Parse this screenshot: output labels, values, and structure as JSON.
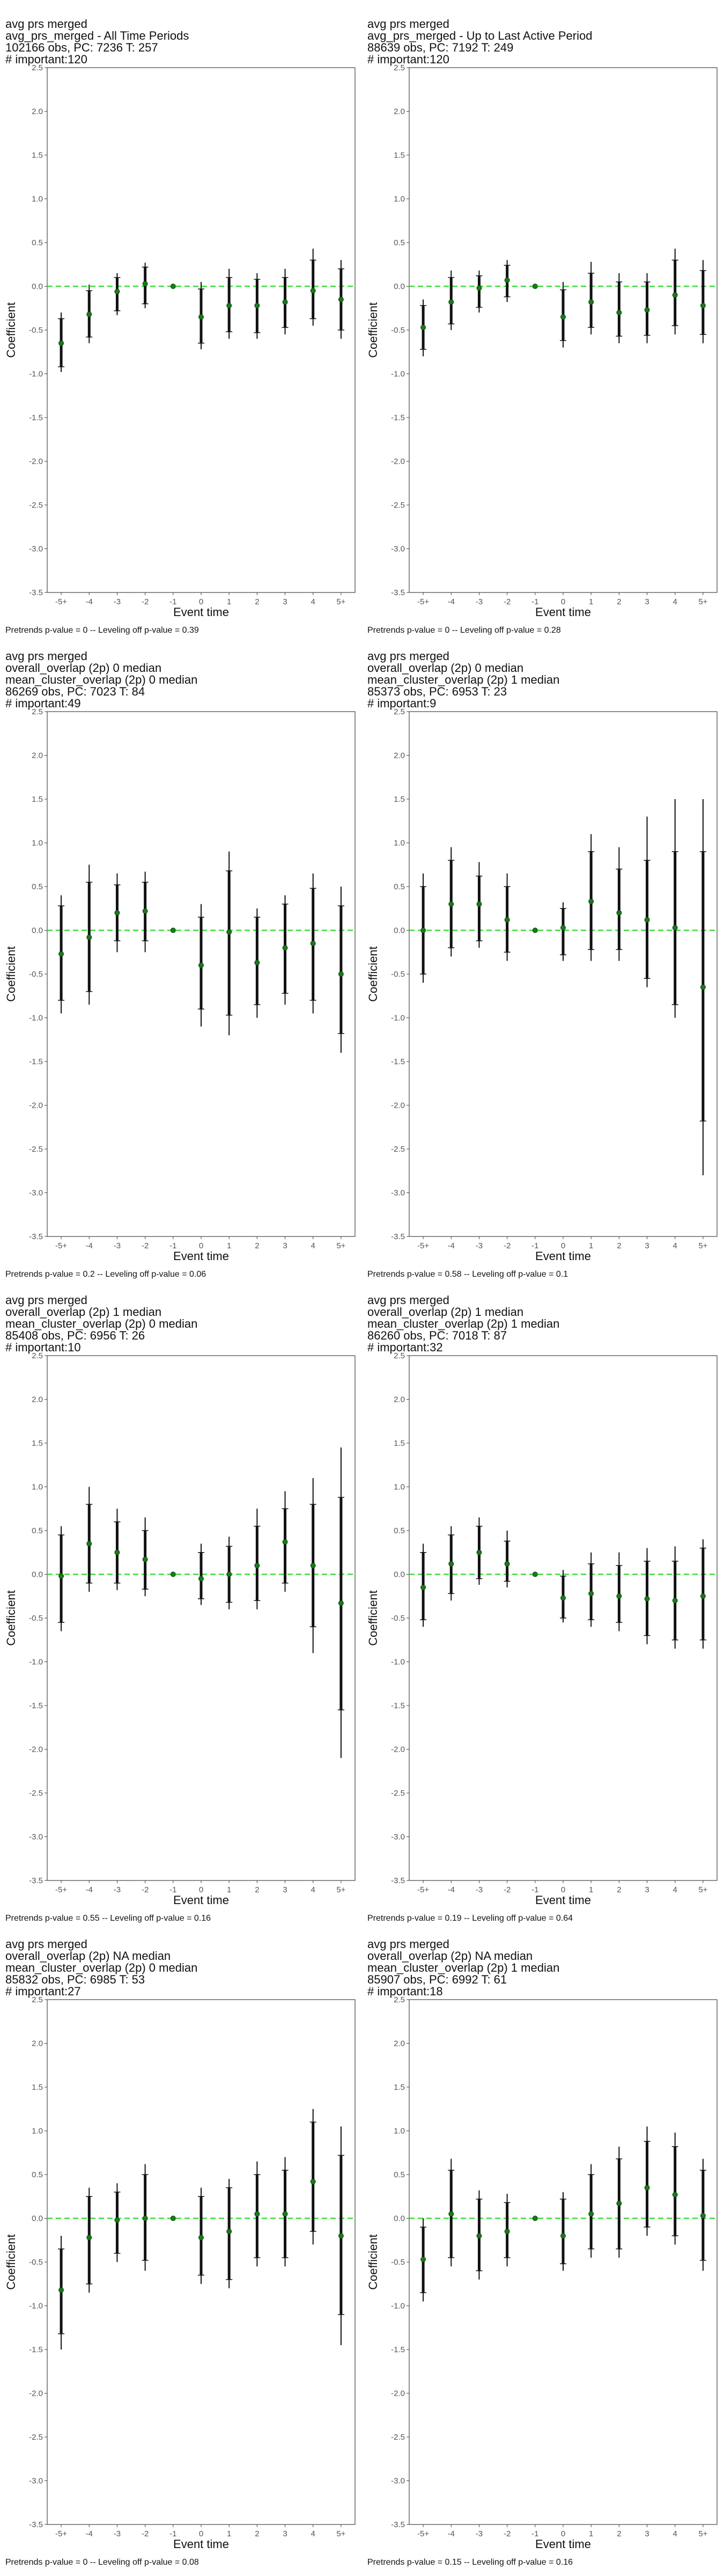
{
  "panels": [
    {
      "title_lines": [
        "avg prs merged",
        "avg_prs_merged - All Time Periods",
        "102166 obs, PC: 7236 T: 257",
        "# important:120"
      ],
      "footer": "Pretrends p-value = 0 -- Leveling off p-value = 0.39",
      "chart_data": {
        "type": "scatter",
        "xlabel": "Event time",
        "ylabel": "Coefficient",
        "categories": [
          "-5+",
          "-4",
          "-3",
          "-2",
          "-1",
          "0",
          "1",
          "2",
          "3",
          "4",
          "5+"
        ],
        "ylim": [
          -3.5,
          2.5
        ],
        "yticks": [
          -3.5,
          -3.0,
          -2.5,
          -2.0,
          -1.5,
          -1.0,
          -0.5,
          0.0,
          0.5,
          1.0,
          1.5,
          2.0,
          2.5
        ],
        "reference_line": 0,
        "estimate": [
          -0.65,
          -0.32,
          -0.06,
          0.03,
          0.0,
          -0.35,
          -0.22,
          -0.22,
          -0.18,
          -0.05,
          -0.15
        ],
        "ci95_low": [
          -0.98,
          -0.65,
          -0.33,
          -0.25,
          0.0,
          -0.72,
          -0.6,
          -0.6,
          -0.55,
          -0.45,
          -0.6
        ],
        "ci95_high": [
          -0.3,
          0.02,
          0.15,
          0.27,
          0.0,
          0.05,
          0.2,
          0.15,
          0.2,
          0.43,
          0.3
        ],
        "ci90_low": [
          -0.92,
          -0.58,
          -0.28,
          -0.2,
          0.0,
          -0.65,
          -0.52,
          -0.53,
          -0.47,
          -0.37,
          -0.5
        ],
        "ci90_high": [
          -0.37,
          -0.05,
          0.1,
          0.22,
          0.0,
          -0.03,
          0.1,
          0.08,
          0.1,
          0.3,
          0.2
        ],
        "grid": false
      }
    },
    {
      "title_lines": [
        "avg prs merged",
        "avg_prs_merged - Up to Last Active Period",
        "88639 obs, PC: 7192 T: 249",
        "# important:120"
      ],
      "footer": "Pretrends p-value = 0 -- Leveling off p-value = 0.28",
      "chart_data": {
        "type": "scatter",
        "xlabel": "Event time",
        "ylabel": "Coefficient",
        "categories": [
          "-5+",
          "-4",
          "-3",
          "-2",
          "-1",
          "0",
          "1",
          "2",
          "3",
          "4",
          "5+"
        ],
        "ylim": [
          -3.5,
          2.5
        ],
        "yticks": [
          -3.5,
          -3.0,
          -2.5,
          -2.0,
          -1.5,
          -1.0,
          -0.5,
          0.0,
          0.5,
          1.0,
          1.5,
          2.0,
          2.5
        ],
        "reference_line": 0,
        "estimate": [
          -0.47,
          -0.18,
          -0.02,
          0.07,
          0.0,
          -0.35,
          -0.18,
          -0.3,
          -0.27,
          -0.1,
          -0.22
        ],
        "ci95_low": [
          -0.8,
          -0.5,
          -0.3,
          -0.18,
          0.0,
          -0.7,
          -0.55,
          -0.65,
          -0.65,
          -0.55,
          -0.65
        ],
        "ci95_high": [
          -0.15,
          0.18,
          0.18,
          0.3,
          0.0,
          0.05,
          0.28,
          0.15,
          0.15,
          0.43,
          0.3
        ],
        "ci90_low": [
          -0.72,
          -0.43,
          -0.24,
          -0.12,
          0.0,
          -0.62,
          -0.47,
          -0.57,
          -0.56,
          -0.45,
          -0.55
        ],
        "ci90_high": [
          -0.22,
          0.1,
          0.12,
          0.24,
          0.0,
          -0.04,
          0.15,
          0.05,
          0.05,
          0.3,
          0.18
        ],
        "grid": false
      }
    },
    {
      "title_lines": [
        "avg prs merged",
        "overall_overlap (2p) 0 median",
        "mean_cluster_overlap (2p) 0 median",
        "86269 obs, PC: 7023 T: 84",
        "# important:49"
      ],
      "footer": "Pretrends p-value = 0.2 -- Leveling off p-value = 0.06",
      "chart_data": {
        "type": "scatter",
        "xlabel": "Event time",
        "ylabel": "Coefficient",
        "categories": [
          "-5+",
          "-4",
          "-3",
          "-2",
          "-1",
          "0",
          "1",
          "2",
          "3",
          "4",
          "5+"
        ],
        "ylim": [
          -3.5,
          2.5
        ],
        "yticks": [
          -3.5,
          -3.0,
          -2.5,
          -2.0,
          -1.5,
          -1.0,
          -0.5,
          0.0,
          0.5,
          1.0,
          1.5,
          2.0,
          2.5
        ],
        "reference_line": 0,
        "estimate": [
          -0.27,
          -0.08,
          0.2,
          0.22,
          0.0,
          -0.4,
          -0.02,
          -0.37,
          -0.2,
          -0.15,
          -0.5
        ],
        "ci95_low": [
          -0.95,
          -0.85,
          -0.25,
          -0.25,
          0.0,
          -1.1,
          -1.2,
          -1.0,
          -0.85,
          -0.95,
          -1.4
        ],
        "ci95_high": [
          0.4,
          0.75,
          0.65,
          0.67,
          0.0,
          0.3,
          0.9,
          0.25,
          0.4,
          0.65,
          0.5
        ],
        "ci90_low": [
          -0.8,
          -0.7,
          -0.12,
          -0.12,
          0.0,
          -0.9,
          -0.97,
          -0.85,
          -0.72,
          -0.8,
          -1.18
        ],
        "ci90_high": [
          0.28,
          0.55,
          0.52,
          0.55,
          0.0,
          0.15,
          0.68,
          0.15,
          0.3,
          0.48,
          0.28
        ],
        "grid": false
      }
    },
    {
      "title_lines": [
        "avg prs merged",
        "overall_overlap (2p) 0 median",
        "mean_cluster_overlap (2p) 1 median",
        "85373 obs, PC: 6953 T: 23",
        "# important:9"
      ],
      "footer": "Pretrends p-value = 0.58 -- Leveling off p-value = 0.1",
      "chart_data": {
        "type": "scatter",
        "xlabel": "Event time",
        "ylabel": "Coefficient",
        "categories": [
          "-5+",
          "-4",
          "-3",
          "-2",
          "-1",
          "0",
          "1",
          "2",
          "3",
          "4",
          "5+"
        ],
        "ylim": [
          -3.5,
          2.5
        ],
        "yticks": [
          -3.5,
          -3.0,
          -2.5,
          -2.0,
          -1.5,
          -1.0,
          -0.5,
          0.0,
          0.5,
          1.0,
          1.5,
          2.0,
          2.5
        ],
        "reference_line": 0,
        "estimate": [
          0.0,
          0.3,
          0.3,
          0.12,
          0.0,
          0.03,
          0.33,
          0.2,
          0.12,
          0.03,
          -0.65
        ],
        "ci95_low": [
          -0.6,
          -0.3,
          -0.2,
          -0.35,
          0.0,
          -0.35,
          -0.35,
          -0.35,
          -0.65,
          -1.0,
          -2.8
        ],
        "ci95_high": [
          0.65,
          0.95,
          0.78,
          0.65,
          0.0,
          0.32,
          1.1,
          0.95,
          1.3,
          1.5,
          1.5
        ],
        "ci90_low": [
          -0.5,
          -0.2,
          -0.12,
          -0.25,
          0.0,
          -0.28,
          -0.22,
          -0.22,
          -0.55,
          -0.85,
          -2.18
        ],
        "ci90_high": [
          0.5,
          0.8,
          0.62,
          0.5,
          0.0,
          0.25,
          0.9,
          0.7,
          0.8,
          0.9,
          0.9
        ],
        "grid": false
      }
    },
    {
      "title_lines": [
        "avg prs merged",
        "overall_overlap (2p) 1 median",
        "mean_cluster_overlap (2p) 0 median",
        "85408 obs, PC: 6956 T: 26",
        "# important:10"
      ],
      "footer": "Pretrends p-value = 0.55 -- Leveling off p-value = 0.16",
      "chart_data": {
        "type": "scatter",
        "xlabel": "Event time",
        "ylabel": "Coefficient",
        "categories": [
          "-5+",
          "-4",
          "-3",
          "-2",
          "-1",
          "0",
          "1",
          "2",
          "3",
          "4",
          "5+"
        ],
        "ylim": [
          -3.5,
          2.5
        ],
        "yticks": [
          -3.5,
          -3.0,
          -2.5,
          -2.0,
          -1.5,
          -1.0,
          -0.5,
          0.0,
          0.5,
          1.0,
          1.5,
          2.0,
          2.5
        ],
        "reference_line": 0,
        "estimate": [
          -0.02,
          0.35,
          0.25,
          0.17,
          0.0,
          -0.05,
          0.0,
          0.1,
          0.37,
          0.1,
          -0.33
        ],
        "ci95_low": [
          -0.65,
          -0.2,
          -0.18,
          -0.25,
          0.0,
          -0.35,
          -0.4,
          -0.4,
          -0.2,
          -0.9,
          -2.1
        ],
        "ci95_high": [
          0.55,
          1.0,
          0.75,
          0.65,
          0.0,
          0.35,
          0.43,
          0.75,
          0.95,
          1.1,
          1.45
        ],
        "ci90_low": [
          -0.55,
          -0.1,
          -0.1,
          -0.17,
          0.0,
          -0.28,
          -0.32,
          -0.3,
          -0.1,
          -0.6,
          -1.55
        ],
        "ci90_high": [
          0.45,
          0.8,
          0.6,
          0.5,
          0.0,
          0.25,
          0.32,
          0.55,
          0.75,
          0.8,
          0.88
        ],
        "grid": false
      }
    },
    {
      "title_lines": [
        "avg prs merged",
        "overall_overlap (2p) 1 median",
        "mean_cluster_overlap (2p) 1 median",
        "86260 obs, PC: 7018 T: 87",
        "# important:32"
      ],
      "footer": "Pretrends p-value = 0.19 -- Leveling off p-value = 0.64",
      "chart_data": {
        "type": "scatter",
        "xlabel": "Event time",
        "ylabel": "Coefficient",
        "categories": [
          "-5+",
          "-4",
          "-3",
          "-2",
          "-1",
          "0",
          "1",
          "2",
          "3",
          "4",
          "5+"
        ],
        "ylim": [
          -3.5,
          2.5
        ],
        "yticks": [
          -3.5,
          -3.0,
          -2.5,
          -2.0,
          -1.5,
          -1.0,
          -0.5,
          0.0,
          0.5,
          1.0,
          1.5,
          2.0,
          2.5
        ],
        "reference_line": 0,
        "estimate": [
          -0.15,
          0.12,
          0.25,
          0.12,
          0.0,
          -0.27,
          -0.22,
          -0.25,
          -0.28,
          -0.3,
          -0.25
        ],
        "ci95_low": [
          -0.6,
          -0.3,
          -0.12,
          -0.15,
          0.0,
          -0.55,
          -0.6,
          -0.65,
          -0.8,
          -0.85,
          -0.85
        ],
        "ci95_high": [
          0.35,
          0.55,
          0.65,
          0.5,
          0.0,
          0.05,
          0.25,
          0.25,
          0.3,
          0.32,
          0.4
        ],
        "ci90_low": [
          -0.52,
          -0.22,
          -0.05,
          -0.08,
          0.0,
          -0.5,
          -0.52,
          -0.55,
          -0.7,
          -0.75,
          -0.75
        ],
        "ci90_high": [
          0.25,
          0.45,
          0.55,
          0.38,
          0.0,
          -0.02,
          0.12,
          0.1,
          0.15,
          0.15,
          0.3
        ],
        "grid": false
      }
    },
    {
      "title_lines": [
        "avg prs merged",
        "overall_overlap (2p) NA median",
        "mean_cluster_overlap (2p) 0 median",
        "85832 obs, PC: 6985 T: 53",
        "# important:27"
      ],
      "footer": "Pretrends p-value = 0 -- Leveling off p-value = 0.08",
      "chart_data": {
        "type": "scatter",
        "xlabel": "Event time",
        "ylabel": "Coefficient",
        "categories": [
          "-5+",
          "-4",
          "-3",
          "-2",
          "-1",
          "0",
          "1",
          "2",
          "3",
          "4",
          "5+"
        ],
        "ylim": [
          -3.5,
          2.5
        ],
        "yticks": [
          -3.5,
          -3.0,
          -2.5,
          -2.0,
          -1.5,
          -1.0,
          -0.5,
          0.0,
          0.5,
          1.0,
          1.5,
          2.0,
          2.5
        ],
        "reference_line": 0,
        "estimate": [
          -0.82,
          -0.22,
          -0.02,
          0.0,
          0.0,
          -0.22,
          -0.15,
          0.05,
          0.05,
          0.42,
          -0.2
        ],
        "ci95_low": [
          -1.5,
          -0.85,
          -0.5,
          -0.6,
          0.0,
          -0.75,
          -0.8,
          -0.55,
          -0.55,
          -0.3,
          -1.45
        ],
        "ci95_high": [
          -0.2,
          0.35,
          0.4,
          0.62,
          0.0,
          0.35,
          0.45,
          0.65,
          0.7,
          1.25,
          1.05
        ],
        "ci90_low": [
          -1.32,
          -0.75,
          -0.4,
          -0.48,
          0.0,
          -0.65,
          -0.7,
          -0.45,
          -0.45,
          -0.15,
          -1.1
        ],
        "ci90_high": [
          -0.35,
          0.25,
          0.3,
          0.5,
          0.0,
          0.25,
          0.35,
          0.5,
          0.55,
          1.1,
          0.72
        ],
        "grid": false
      }
    },
    {
      "title_lines": [
        "avg prs merged",
        "overall_overlap (2p) NA median",
        "mean_cluster_overlap (2p) 1 median",
        "85907 obs, PC: 6992 T: 61",
        "# important:18"
      ],
      "footer": "Pretrends p-value = 0.15 -- Leveling off p-value = 0.16",
      "chart_data": {
        "type": "scatter",
        "xlabel": "Event time",
        "ylabel": "Coefficient",
        "categories": [
          "-5+",
          "-4",
          "-3",
          "-2",
          "-1",
          "0",
          "1",
          "2",
          "3",
          "4",
          "5+"
        ],
        "ylim": [
          -3.5,
          2.5
        ],
        "yticks": [
          -3.5,
          -3.0,
          -2.5,
          -2.0,
          -1.5,
          -1.0,
          -0.5,
          0.0,
          0.5,
          1.0,
          1.5,
          2.0,
          2.5
        ],
        "reference_line": 0,
        "estimate": [
          -0.47,
          0.05,
          -0.2,
          -0.15,
          0.0,
          -0.2,
          0.05,
          0.17,
          0.35,
          0.27,
          0.03
        ],
        "ci95_low": [
          -0.95,
          -0.55,
          -0.7,
          -0.55,
          0.0,
          -0.6,
          -0.45,
          -0.45,
          -0.2,
          -0.3,
          -0.6
        ],
        "ci95_high": [
          0.0,
          0.68,
          0.32,
          0.28,
          0.0,
          0.3,
          0.62,
          0.82,
          1.05,
          0.98,
          0.68
        ],
        "ci90_low": [
          -0.85,
          -0.45,
          -0.6,
          -0.45,
          0.0,
          -0.52,
          -0.35,
          -0.35,
          -0.1,
          -0.2,
          -0.48
        ],
        "ci90_high": [
          -0.1,
          0.55,
          0.22,
          0.18,
          0.0,
          0.22,
          0.5,
          0.68,
          0.88,
          0.82,
          0.55
        ],
        "grid": false
      }
    }
  ]
}
